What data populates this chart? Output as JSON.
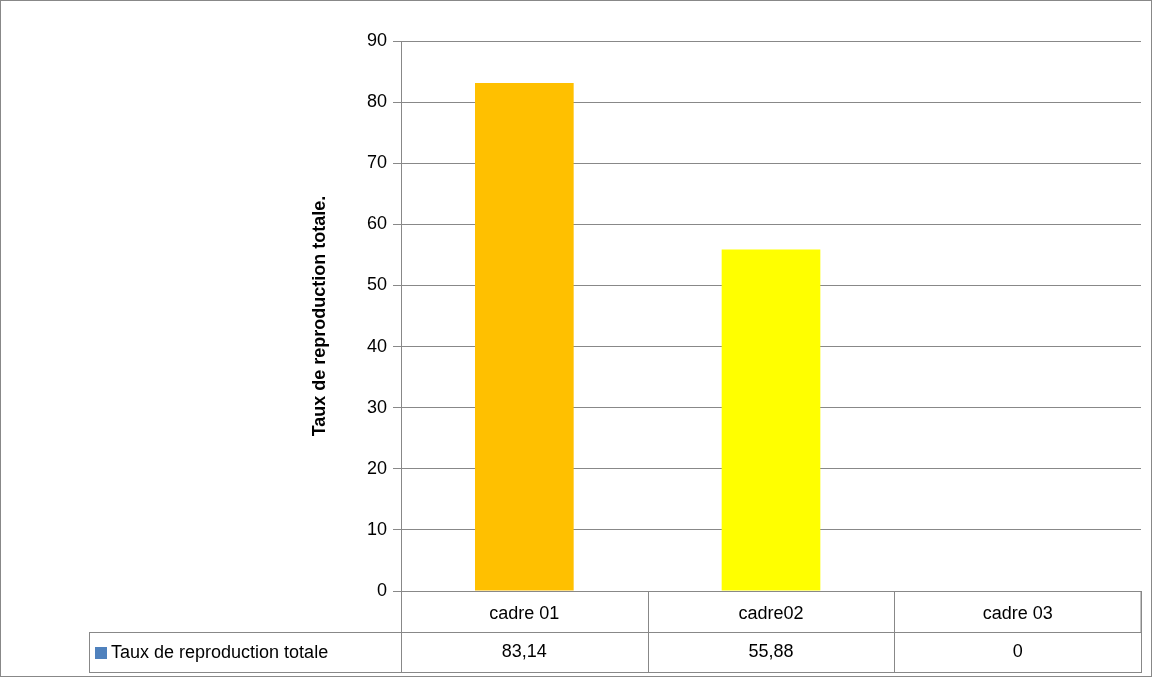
{
  "chart_data": {
    "type": "bar",
    "ylabel": "Taux de reproduction totale.",
    "categories": [
      "cadre 01",
      "cadre02",
      "cadre 03"
    ],
    "series": [
      {
        "name": "Taux de reproduction totale",
        "color": "#4f81bd",
        "colors": [
          "#ffc000",
          "#ffff00",
          "#ffc000"
        ],
        "values": [
          83.14,
          55.88,
          0
        ],
        "value_labels": [
          "83,14",
          "55,88",
          "0"
        ]
      }
    ],
    "ylim": [
      0,
      90
    ],
    "yticks": [
      0,
      10,
      20,
      30,
      40,
      50,
      60,
      70,
      80,
      90
    ],
    "grid": "y",
    "legend": "bottom left"
  }
}
